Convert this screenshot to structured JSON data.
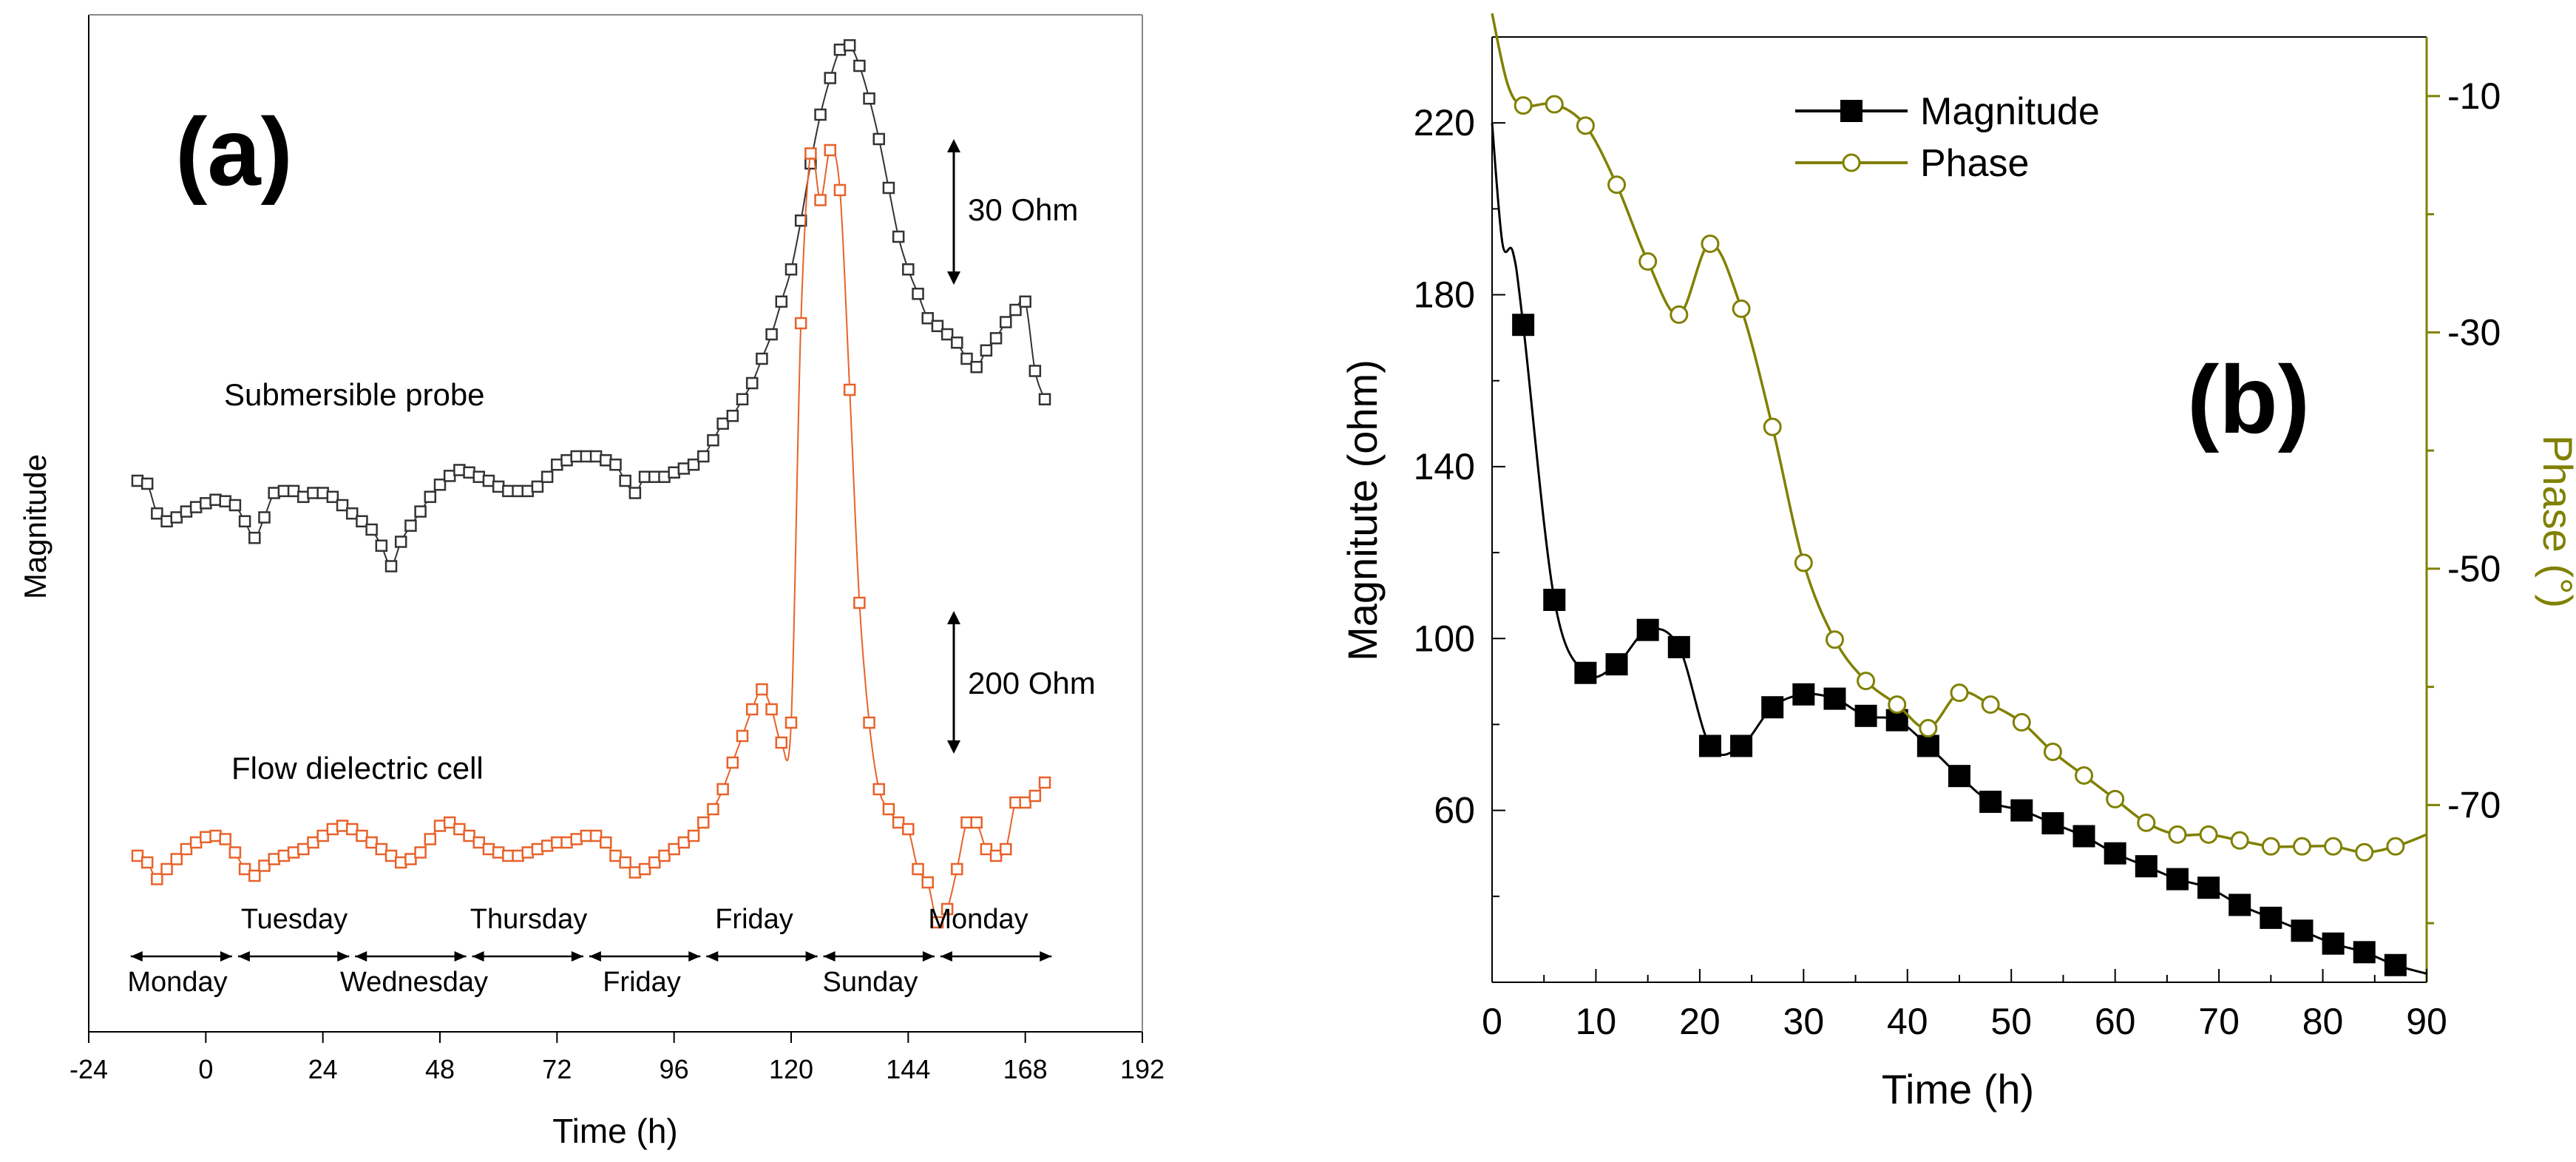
{
  "colors": {
    "black": "#000000",
    "olive": "#808000",
    "orange": "#e8622a",
    "gray_frame": "#888888"
  },
  "panel_a": {
    "letter": "(a)",
    "ylabel": "Magnitude",
    "xlabel": "Time (h)",
    "xticks": [
      "-24",
      "0",
      "24",
      "48",
      "72",
      "96",
      "120",
      "144",
      "168",
      "192"
    ],
    "scale_top": "30 Ohm",
    "scale_bottom": "200 Ohm",
    "label_probe": "Submersible probe",
    "label_cell": "Flow dielectric cell",
    "days_upper": [
      "Tuesday",
      "Thursday",
      "Friday",
      "Monday"
    ],
    "days_lower": [
      "Monday",
      "Wednesday",
      "Friday",
      "Sunday"
    ]
  },
  "panel_b": {
    "letter": "(b)",
    "xlabel": "Time (h)",
    "ylabel_left": "Magnitute (ohm)",
    "ylabel_right": "Phase (°)",
    "xticks": [
      "0",
      "10",
      "20",
      "30",
      "40",
      "50",
      "60",
      "70",
      "80",
      "90"
    ],
    "yticks_left": [
      "60",
      "100",
      "140",
      "180",
      "220"
    ],
    "yticks_right": [
      "-10",
      "-30",
      "-50",
      "-70"
    ],
    "legend": [
      "Magnitude",
      "Phase"
    ]
  },
  "chart_data": [
    {
      "type": "scatter",
      "title": "(a)",
      "xlabel": "Time (h)",
      "ylabel": "Magnitude",
      "xlim": [
        -24,
        192
      ],
      "yunits": "relative (offset traces, scale bars 30 Ohm and 200 Ohm)",
      "series": [
        {
          "name": "Submersible probe",
          "color": "#333333",
          "x": [
            -14,
            -12,
            -10,
            -8,
            -6,
            -4,
            -2,
            0,
            2,
            4,
            6,
            8,
            10,
            12,
            14,
            16,
            18,
            20,
            22,
            24,
            26,
            28,
            30,
            32,
            34,
            36,
            38,
            40,
            42,
            44,
            46,
            48,
            50,
            52,
            54,
            56,
            58,
            60,
            62,
            64,
            66,
            68,
            70,
            72,
            74,
            76,
            78,
            80,
            82,
            84,
            86,
            88,
            90,
            92,
            94,
            96,
            98,
            100,
            102,
            104,
            106,
            108,
            110,
            112,
            114,
            116,
            118,
            120,
            122,
            124,
            126,
            128,
            130,
            132,
            134,
            136,
            138,
            140,
            142,
            144,
            146,
            148,
            150,
            152,
            154,
            156,
            158,
            160,
            162,
            164,
            166,
            168,
            170,
            172
          ],
          "y": [
            0.0,
            -0.6,
            -6.7,
            -8.3,
            -7.5,
            -6.3,
            -5.4,
            -4.6,
            -3.9,
            -4.2,
            -5.0,
            -8.3,
            -11.7,
            -7.5,
            -2.5,
            -2.1,
            -2.1,
            -3.3,
            -2.5,
            -2.5,
            -3.3,
            -5.0,
            -6.7,
            -8.3,
            -10.0,
            -13.3,
            -17.5,
            -12.5,
            -9.2,
            -6.3,
            -3.3,
            -0.8,
            1.0,
            2.2,
            1.7,
            0.8,
            0.0,
            -1.2,
            -2.1,
            -2.1,
            -2.1,
            -1.2,
            0.8,
            3.3,
            4.2,
            5.0,
            5.0,
            5.0,
            4.2,
            3.3,
            0.0,
            -2.5,
            0.8,
            0.8,
            0.8,
            1.7,
            2.5,
            3.3,
            5.0,
            8.3,
            11.7,
            13.3,
            16.7,
            20.0,
            25.0,
            30.0,
            36.7,
            43.3,
            53.3,
            65.0,
            75.0,
            82.5,
            88.3,
            89.2,
            85.0,
            78.3,
            70.0,
            60.0,
            50.0,
            43.3,
            38.3,
            33.3,
            31.7,
            30.0,
            28.3,
            25.0,
            23.3,
            26.7,
            29.2,
            32.5,
            35.0,
            36.7,
            22.5,
            16.7
          ]
        },
        {
          "name": "Flow dielectric cell",
          "color": "#e8622a",
          "x": [
            -14,
            -12,
            -10,
            -8,
            -6,
            -4,
            -2,
            0,
            2,
            4,
            6,
            8,
            10,
            12,
            14,
            16,
            18,
            20,
            22,
            24,
            26,
            28,
            30,
            32,
            34,
            36,
            38,
            40,
            42,
            44,
            46,
            48,
            50,
            52,
            54,
            56,
            58,
            60,
            62,
            64,
            66,
            68,
            70,
            72,
            74,
            76,
            78,
            80,
            82,
            84,
            86,
            88,
            90,
            92,
            94,
            96,
            98,
            100,
            102,
            104,
            106,
            108,
            110,
            112,
            114,
            116,
            118,
            120,
            122,
            124,
            126,
            128,
            130,
            132,
            134,
            136,
            138,
            140,
            142,
            144,
            146,
            148,
            150,
            152,
            154,
            156,
            158,
            160,
            162,
            164,
            166,
            168,
            170,
            172
          ],
          "y": [
            0,
            -10,
            -35,
            -20,
            -5,
            10,
            20,
            28,
            30,
            25,
            5,
            -20,
            -30,
            -15,
            -5,
            0,
            5,
            10,
            20,
            30,
            40,
            45,
            40,
            30,
            20,
            10,
            0,
            -10,
            -5,
            5,
            25,
            45,
            50,
            40,
            30,
            20,
            10,
            5,
            0,
            0,
            5,
            10,
            15,
            20,
            20,
            25,
            30,
            30,
            20,
            0,
            -10,
            -25,
            -20,
            -10,
            0,
            10,
            20,
            30,
            50,
            70,
            100,
            140,
            180,
            220,
            250,
            220,
            170,
            200,
            800,
            1055,
            985,
            1060,
            1000,
            700,
            380,
            200,
            100,
            70,
            50,
            40,
            -20,
            -40,
            -100,
            -80,
            -20,
            50,
            50,
            10,
            0,
            10,
            80,
            80,
            90,
            110
          ]
        }
      ]
    },
    {
      "type": "line",
      "title": "(b)",
      "xlabel": "Time (h)",
      "ylabel": "Magnitute (ohm)",
      "ylabel_right": "Phase (°)",
      "xlim": [
        0,
        90
      ],
      "ylim": [
        20,
        240
      ],
      "ylim_right": [
        -5,
        -85
      ],
      "legend": "top-center",
      "series": [
        {
          "name": "Magnitude",
          "axis": "left",
          "color": "#000000",
          "x": [
            3,
            6,
            9,
            12,
            15,
            18,
            21,
            24,
            27,
            30,
            33,
            36,
            39,
            42,
            45,
            48,
            51,
            54,
            57,
            60,
            63,
            66,
            69,
            72,
            75,
            78,
            81,
            84,
            87
          ],
          "y": [
            173,
            109,
            92,
            94,
            102,
            98,
            75,
            75,
            84,
            87,
            86,
            82,
            81,
            75,
            68,
            62,
            60,
            57,
            54,
            50,
            47,
            44,
            42,
            38,
            35,
            32,
            29,
            27,
            24
          ]
        },
        {
          "name": "Phase",
          "axis": "right",
          "color": "#808000",
          "x": [
            3,
            6,
            9,
            12,
            15,
            18,
            21,
            24,
            27,
            30,
            33,
            36,
            39,
            42,
            45,
            48,
            51,
            54,
            57,
            60,
            63,
            66,
            69,
            72,
            75,
            78,
            81,
            84,
            87
          ],
          "y": [
            -10.8,
            -10.7,
            -12.5,
            -17.5,
            -24,
            -28.5,
            -22.5,
            -28,
            -38,
            -49.5,
            -56,
            -59.5,
            -61.5,
            -63.5,
            -60.5,
            -61.5,
            -63,
            -65.5,
            -67.5,
            -69.5,
            -71.5,
            -72.5,
            -72.5,
            -73,
            -73.5,
            -73.5,
            -73.5,
            -74,
            -73.5
          ]
        }
      ]
    }
  ]
}
